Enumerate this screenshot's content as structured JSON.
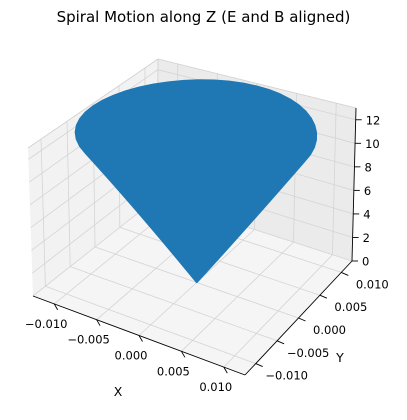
{
  "chart_data": {
    "type": "line3d",
    "title": "Spiral Motion along Z (E and B aligned)",
    "xlabel": "X",
    "ylabel": "Y",
    "zlabel": "",
    "xlim": [
      -0.0125,
      0.0125
    ],
    "ylim": [
      -0.0125,
      0.0125
    ],
    "zlim": [
      0,
      13
    ],
    "xticks": [
      -0.01,
      -0.005,
      0.0,
      0.005,
      0.01
    ],
    "xtick_labels": [
      "−0.010",
      "−0.005",
      "0.000",
      "0.005",
      "0.010"
    ],
    "yticks": [
      -0.01,
      -0.005,
      0.0,
      0.005,
      0.01
    ],
    "ytick_labels": [
      "−0.010",
      "−0.005",
      "0.000",
      "0.005",
      "0.010"
    ],
    "zticks": [
      0,
      2,
      4,
      6,
      8,
      10,
      12
    ],
    "ztick_labels": [
      "0",
      "2",
      "4",
      "6",
      "8",
      "10",
      "12"
    ],
    "grid": true,
    "series": [
      {
        "color": "#1f77b4",
        "curve": "helix with radius growing linearly with z",
        "radius_at_z_min": 0.0,
        "radius_at_z_max": 0.0125,
        "z_range": [
          0,
          12.8
        ],
        "turns": 300
      }
    ]
  }
}
